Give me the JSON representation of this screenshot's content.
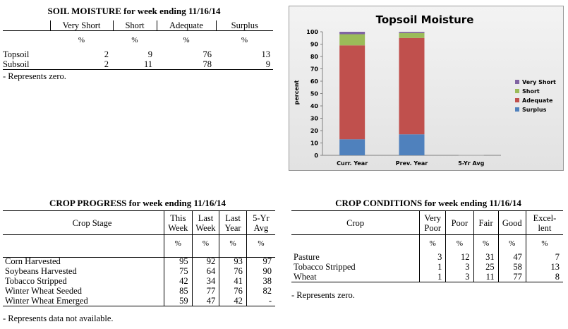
{
  "soil": {
    "title": "SOIL MOISTURE for week ending 11/16/14",
    "headers": [
      "Very Short",
      "Short",
      "Adequate",
      "Surplus"
    ],
    "units": [
      "%",
      "%",
      "%",
      "%"
    ],
    "rows": [
      {
        "label": "Topsoil",
        "values": [
          "2",
          "9",
          "76",
          "13"
        ]
      },
      {
        "label": "Subsoil",
        "values": [
          "2",
          "11",
          "78",
          "9"
        ]
      }
    ],
    "note": "- Represents zero."
  },
  "progress": {
    "title": "CROP PROGRESS for week ending 11/16/14",
    "stage_header": "Crop Stage",
    "headers": [
      [
        "This",
        "Week"
      ],
      [
        "Last",
        "Week"
      ],
      [
        "Last",
        "Year"
      ],
      [
        "5-Yr",
        "Avg"
      ]
    ],
    "units": [
      "%",
      "%",
      "%",
      "%"
    ],
    "rows": [
      {
        "label": "Corn Harvested",
        "values": [
          "95",
          "92",
          "93",
          "97"
        ]
      },
      {
        "label": "Soybeans Harvested",
        "values": [
          "75",
          "64",
          "76",
          "90"
        ]
      },
      {
        "label": "Tobacco Stripped",
        "values": [
          "42",
          "34",
          "41",
          "38"
        ]
      },
      {
        "label": "Winter Wheat Seeded",
        "values": [
          "85",
          "77",
          "76",
          "82"
        ]
      },
      {
        "label": "Winter Wheat Emerged",
        "values": [
          "59",
          "47",
          "42",
          "-"
        ]
      }
    ],
    "note": "- Represents data not available."
  },
  "conditions": {
    "title": "CROP CONDITIONS for week ending 11/16/14",
    "crop_header": "Crop",
    "headers": [
      [
        "Very",
        "Poor"
      ],
      [
        "Poor",
        ""
      ],
      [
        "Fair",
        ""
      ],
      [
        "Good",
        ""
      ],
      [
        "Excel-",
        "lent"
      ]
    ],
    "units": [
      "%",
      "%",
      "%",
      "%",
      "%"
    ],
    "rows": [
      {
        "label": "Pasture",
        "values": [
          "3",
          "12",
          "31",
          "47",
          "7"
        ]
      },
      {
        "label": "Tobacco Stripped",
        "values": [
          "1",
          "3",
          "25",
          "58",
          "13"
        ]
      },
      {
        "label": "Wheat",
        "values": [
          "1",
          "3",
          "11",
          "77",
          "8"
        ]
      }
    ],
    "note": "- Represents zero."
  },
  "chart_data": {
    "type": "bar",
    "stacked": true,
    "title": "Topsoil Moisture",
    "ylabel": "percent",
    "xlabel": "",
    "ylim": [
      0,
      100
    ],
    "yticks": [
      0,
      10,
      20,
      30,
      40,
      50,
      60,
      70,
      80,
      90,
      100
    ],
    "categories": [
      "Curr. Year",
      "Prev. Year",
      "5-Yr Avg"
    ],
    "series": [
      {
        "name": "Surplus",
        "color": "#4f81bd",
        "values": [
          13,
          17,
          0
        ]
      },
      {
        "name": "Adequate",
        "color": "#c0504d",
        "values": [
          76,
          78,
          0
        ]
      },
      {
        "name": "Short",
        "color": "#9bbb59",
        "values": [
          9,
          4,
          0
        ]
      },
      {
        "name": "Very Short",
        "color": "#8064a2",
        "values": [
          2,
          1,
          0
        ]
      }
    ],
    "legend_order": [
      "Very Short",
      "Short",
      "Adequate",
      "Surplus"
    ],
    "legend_position": "right",
    "grid": false
  }
}
